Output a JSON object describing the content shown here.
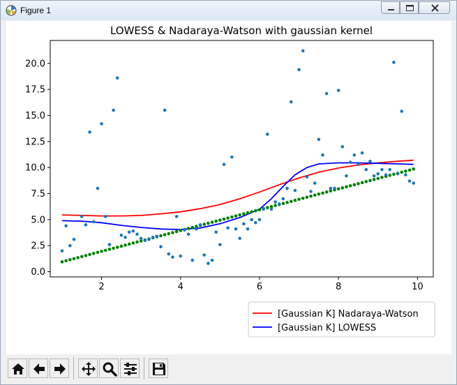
{
  "window": {
    "title": "Figure 1"
  },
  "toolbar": {
    "buttons": [
      {
        "name": "home-button",
        "icon": "home-icon"
      },
      {
        "name": "back-button",
        "icon": "arrow-left-icon"
      },
      {
        "name": "forward-button",
        "icon": "arrow-right-icon"
      },
      {
        "name": "pan-button",
        "icon": "move-icon"
      },
      {
        "name": "zoom-button",
        "icon": "search-icon"
      },
      {
        "name": "configure-subplots-button",
        "icon": "sliders-icon"
      },
      {
        "name": "save-button",
        "icon": "save-icon"
      }
    ]
  },
  "chart_data": {
    "type": "scatter",
    "title": "LOWESS & Nadaraya-Watson with gaussian kernel",
    "xlabel": "",
    "ylabel": "",
    "xlim": [
      0.7,
      10.4
    ],
    "ylim": [
      -0.5,
      22.2
    ],
    "xticks": [
      2,
      4,
      6,
      8,
      10
    ],
    "yticks": [
      0.0,
      2.5,
      5.0,
      7.5,
      10.0,
      12.5,
      15.0,
      17.5,
      20.0
    ],
    "grid": false,
    "legend_position": "lower-right",
    "colors": {
      "scatter": "#1f77b4",
      "nadaraya_watson": "#ff0000",
      "lowess": "#0000ff",
      "linear": "#008000"
    },
    "scatter": {
      "x": [
        1.0,
        1.1,
        1.2,
        1.3,
        1.5,
        1.6,
        1.7,
        1.8,
        1.9,
        2.0,
        2.1,
        2.2,
        2.3,
        2.4,
        2.5,
        2.6,
        2.7,
        2.8,
        2.9,
        3.0,
        3.1,
        3.2,
        3.3,
        3.4,
        3.5,
        3.6,
        3.7,
        3.8,
        3.9,
        4.0,
        4.1,
        4.2,
        4.3,
        4.4,
        4.5,
        4.6,
        4.7,
        4.8,
        4.9,
        5.0,
        5.1,
        5.2,
        5.3,
        5.4,
        5.5,
        5.6,
        5.7,
        5.8,
        5.9,
        6.0,
        6.1,
        6.2,
        6.3,
        6.4,
        6.5,
        6.6,
        6.7,
        6.8,
        6.9,
        7.0,
        7.1,
        7.2,
        7.3,
        7.4,
        7.5,
        7.6,
        7.7,
        7.8,
        7.9,
        8.0,
        8.1,
        8.2,
        8.3,
        8.4,
        8.5,
        8.6,
        8.7,
        8.8,
        8.9,
        9.0,
        9.1,
        9.2,
        9.3,
        9.4,
        9.5,
        9.6,
        9.7,
        9.8,
        9.9
      ],
      "y": [
        2.0,
        4.4,
        2.5,
        3.1,
        5.3,
        4.5,
        13.4,
        4.8,
        8.0,
        14.2,
        5.3,
        2.6,
        15.5,
        18.6,
        3.5,
        3.3,
        3.8,
        3.9,
        3.6,
        3.2,
        3.0,
        3.1,
        3.3,
        3.4,
        2.4,
        15.5,
        1.7,
        1.4,
        5.3,
        1.5,
        4.0,
        3.6,
        1.1,
        4.1,
        4.5,
        1.6,
        0.8,
        1.1,
        3.8,
        2.6,
        10.3,
        4.2,
        11.0,
        4.1,
        3.2,
        4.6,
        4.1,
        5.0,
        4.7,
        5.0,
        6.0,
        13.2,
        6.0,
        6.7,
        6.5,
        7.0,
        8.0,
        16.3,
        7.8,
        19.4,
        21.2,
        9.1,
        7.7,
        8.5,
        12.7,
        11.2,
        17.1,
        8.0,
        8.0,
        17.4,
        12.0,
        9.2,
        10.5,
        11.2,
        10.3,
        11.4,
        9.8,
        10.6,
        9.2,
        9.4,
        9.8,
        9.3,
        9.8,
        20.1,
        9.4,
        15.4,
        9.3,
        8.7,
        8.5
      ]
    },
    "series": [
      {
        "name": "[Gaussian K] Nadaraya-Watson",
        "x": [
          1.0,
          1.5,
          2.0,
          2.5,
          3.0,
          3.5,
          4.0,
          4.5,
          5.0,
          5.5,
          6.0,
          6.5,
          7.0,
          7.5,
          8.0,
          8.5,
          9.0,
          9.5,
          9.9
        ],
        "y": [
          5.45,
          5.4,
          5.35,
          5.35,
          5.4,
          5.55,
          5.75,
          6.05,
          6.45,
          7.0,
          7.65,
          8.35,
          9.0,
          9.55,
          9.95,
          10.25,
          10.45,
          10.6,
          10.7
        ]
      },
      {
        "name": "[Gaussian K] LOWESS",
        "x": [
          1.0,
          1.5,
          2.0,
          2.5,
          3.0,
          3.5,
          4.0,
          4.5,
          5.0,
          5.5,
          6.0,
          6.3,
          6.6,
          6.9,
          7.2,
          7.5,
          8.0,
          8.5,
          9.0,
          9.5,
          9.9
        ],
        "y": [
          4.9,
          4.85,
          4.7,
          4.45,
          4.25,
          4.1,
          4.05,
          4.2,
          4.6,
          5.2,
          6.0,
          7.0,
          8.2,
          9.3,
          10.0,
          10.35,
          10.45,
          10.45,
          10.4,
          10.35,
          10.3
        ]
      },
      {
        "name": "",
        "x": [
          1.0,
          9.9
        ],
        "y": [
          0.95,
          9.85
        ]
      }
    ],
    "legend": [
      "[Gaussian K] Nadaraya-Watson",
      "[Gaussian K] LOWESS"
    ]
  }
}
